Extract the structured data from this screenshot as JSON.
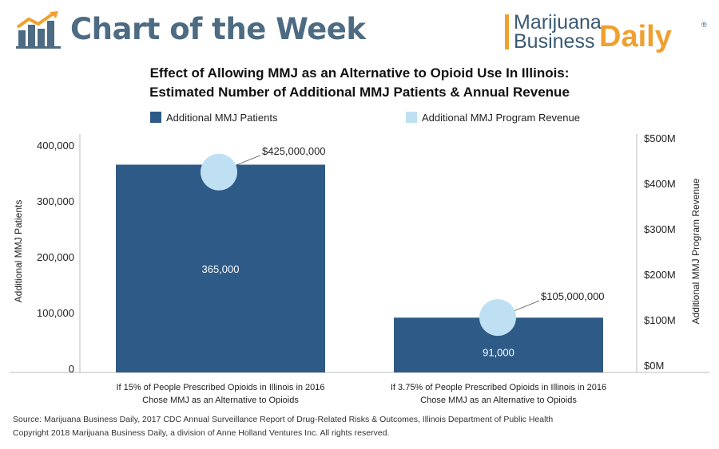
{
  "banner": {
    "title": "Chart of the Week",
    "brand_line1": "Marijuana",
    "brand_line2": "Business",
    "brand_daily": "Daily",
    "brand_mark": "®"
  },
  "colors": {
    "patients": "#2e5a87",
    "revenue": "#bfe0f2",
    "banner_text": "#4d6b82",
    "brand_orange": "#f0a030"
  },
  "chart_data": {
    "type": "bar",
    "title": "Effect of Allowing MMJ as an Alternative to Opioid Use In Illinois:",
    "subtitle": "Estimated Number of Additional MMJ Patients & Annual Revenue",
    "categories": [
      [
        "If 15% of People Prescribed Opioids in Illinois in 2016",
        "Chose MMJ as an Alternative to Opioids"
      ],
      [
        "If 3.75% of People Prescribed Opioids in Illinois in 2016",
        "Chose MMJ as an Alternative to Opioids"
      ]
    ],
    "series": [
      {
        "name": "Additional MMJ Patients",
        "axis": "left",
        "type": "bar",
        "values": [
          365000,
          91000
        ],
        "labels": [
          "365,000",
          "91,000"
        ]
      },
      {
        "name": "Additional MMJ Program Revenue",
        "axis": "right",
        "type": "scatter",
        "values": [
          425000000,
          105000000
        ],
        "labels": [
          "$425,000,000",
          "$105,000,000"
        ]
      }
    ],
    "ylabel": "Additional MMJ Patients",
    "ylabel_right": "Additional MMJ Program Revenue",
    "ylim": [
      0,
      400000
    ],
    "ylim_right": [
      0,
      500000000
    ],
    "yticks": [
      0,
      100000,
      200000,
      300000,
      400000
    ],
    "yticks_labels": [
      "0",
      "100,000",
      "200,000",
      "300,000",
      "400,000"
    ],
    "yticks_right": [
      0,
      100000000,
      200000000,
      300000000,
      400000000,
      500000000
    ],
    "yticks_right_labels": [
      "$0M",
      "$100M",
      "$200M",
      "$300M",
      "$400M",
      "$500M"
    ],
    "grid": false,
    "legend_position": "top"
  },
  "footer": {
    "source": "Source: Marijuana Business Daily, 2017 CDC Annual Surveillance Report of Drug-Related Risks & Outcomes, Illinois Department of Public Health",
    "copyright": "Copyright 2018 Marijuana Business Daily, a division of Anne Holland Ventures Inc. All rights reserved."
  }
}
